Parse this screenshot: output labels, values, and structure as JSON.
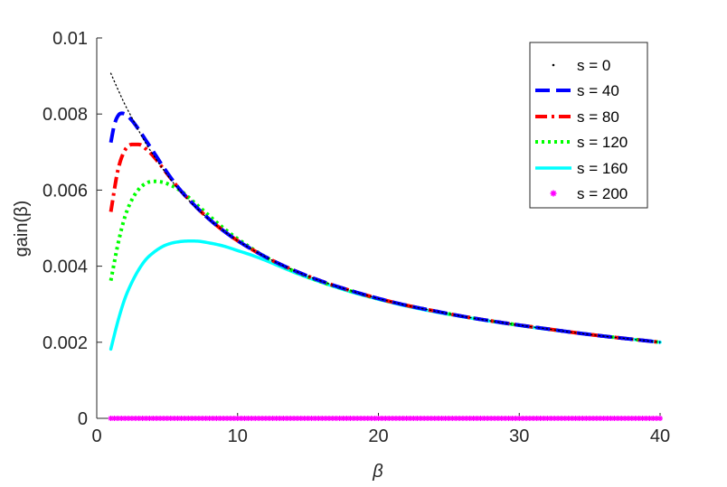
{
  "chart_data": {
    "type": "line",
    "xlabel": "β",
    "ylabel": "gain(β)",
    "xlim": [
      0,
      40
    ],
    "ylim": [
      0,
      0.01
    ],
    "xticks": [
      0,
      10,
      20,
      30,
      40
    ],
    "xtick_labels": [
      "0",
      "10",
      "20",
      "30",
      "40"
    ],
    "yticks": [
      0,
      0.002,
      0.004,
      0.006,
      0.008,
      0.01
    ],
    "ytick_labels": [
      "0",
      "0.002",
      "0.004",
      "0.006",
      "0.008",
      "0.01"
    ],
    "grid": false,
    "legend_position": "top-right",
    "series": [
      {
        "name": "s = 0",
        "color": "#000000",
        "style": "dotted",
        "x": [
          1,
          1.5,
          2,
          2.5,
          3,
          3.5,
          4,
          5,
          6,
          7,
          8,
          9,
          10,
          12,
          14,
          16,
          18,
          20,
          22,
          24,
          26,
          28,
          30,
          32,
          34,
          36,
          38,
          40
        ],
        "y": [
          0.00907,
          0.00865,
          0.00825,
          0.0079,
          0.00755,
          0.00722,
          0.00693,
          0.0064,
          0.00594,
          0.00556,
          0.00522,
          0.00493,
          0.00467,
          0.00424,
          0.00389,
          0.0036,
          0.00336,
          0.00315,
          0.00297,
          0.00282,
          0.00268,
          0.00256,
          0.00245,
          0.00235,
          0.00225,
          0.00216,
          0.00208,
          0.002
        ]
      },
      {
        "name": "s = 40",
        "color": "#0000ff",
        "style": "dashed",
        "x": [
          1,
          1.25,
          1.5,
          1.75,
          2,
          2.5,
          3,
          3.5,
          4,
          5,
          6,
          7,
          8,
          9,
          10,
          12,
          14,
          16,
          18,
          20,
          22,
          24,
          26,
          28,
          30,
          32,
          34,
          36,
          38,
          40
        ],
        "y": [
          0.00725,
          0.00772,
          0.00795,
          0.00802,
          0.008,
          0.00783,
          0.00758,
          0.0073,
          0.00702,
          0.00646,
          0.00597,
          0.00558,
          0.00523,
          0.00493,
          0.00467,
          0.00424,
          0.00389,
          0.0036,
          0.00336,
          0.00315,
          0.00297,
          0.00282,
          0.00268,
          0.00256,
          0.00245,
          0.00235,
          0.00225,
          0.00216,
          0.00208,
          0.002
        ]
      },
      {
        "name": "s = 80",
        "color": "#ff0000",
        "style": "dashdot",
        "x": [
          1,
          1.5,
          2,
          2.5,
          3,
          3.5,
          4,
          5,
          6,
          7,
          8,
          9,
          10,
          12,
          14,
          16,
          18,
          20,
          22,
          24,
          26,
          28,
          30,
          32,
          34,
          36,
          38,
          40
        ],
        "y": [
          0.00543,
          0.00652,
          0.00705,
          0.0072,
          0.0072,
          0.00708,
          0.0069,
          0.00643,
          0.00597,
          0.00558,
          0.00523,
          0.00493,
          0.00467,
          0.00424,
          0.00389,
          0.0036,
          0.00336,
          0.00315,
          0.00297,
          0.00282,
          0.00268,
          0.00256,
          0.00245,
          0.00235,
          0.00225,
          0.00216,
          0.00208,
          0.002
        ]
      },
      {
        "name": "s = 120",
        "color": "#00ff00",
        "style": "dotted-thick",
        "x": [
          1,
          1.5,
          2,
          2.5,
          3,
          3.5,
          4,
          4.5,
          5,
          6,
          7,
          8,
          9,
          10,
          12,
          14,
          16,
          18,
          20,
          22,
          24,
          26,
          28,
          30,
          32,
          34,
          36,
          38,
          40
        ],
        "y": [
          0.00362,
          0.00457,
          0.0053,
          0.00575,
          0.00603,
          0.00618,
          0.00623,
          0.00622,
          0.00617,
          0.00597,
          0.00565,
          0.00532,
          0.005,
          0.00472,
          0.00424,
          0.00387,
          0.00358,
          0.00335,
          0.00314,
          0.00297,
          0.00282,
          0.00268,
          0.00256,
          0.00245,
          0.00235,
          0.00225,
          0.00216,
          0.00208,
          0.002
        ]
      },
      {
        "name": "s = 160",
        "color": "#00ffff",
        "style": "solid",
        "x": [
          1,
          1.5,
          2,
          2.5,
          3,
          3.5,
          4,
          4.5,
          5,
          6,
          7,
          8,
          9,
          10,
          11,
          12,
          14,
          16,
          18,
          20,
          22,
          24,
          26,
          28,
          30,
          32,
          34,
          36,
          38,
          40
        ],
        "y": [
          0.00182,
          0.00255,
          0.00315,
          0.00358,
          0.00392,
          0.00418,
          0.00435,
          0.00448,
          0.00457,
          0.00465,
          0.00466,
          0.00461,
          0.00453,
          0.00441,
          0.00429,
          0.00415,
          0.00384,
          0.00357,
          0.00333,
          0.00313,
          0.00295,
          0.0028,
          0.00267,
          0.00255,
          0.00244,
          0.00234,
          0.00225,
          0.00216,
          0.00208,
          0.002
        ]
      },
      {
        "name": "s = 200",
        "color": "#ff00ff",
        "style": "star-markers",
        "x_range": [
          1,
          40
        ],
        "y_const": 0
      }
    ]
  }
}
